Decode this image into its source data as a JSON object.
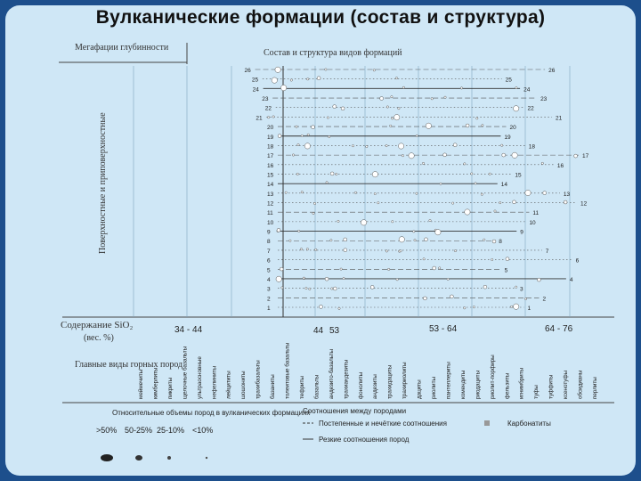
{
  "title": "Вулканические формации (состав и структура)",
  "header": {
    "depth_facies": "Мегафации глубинности",
    "composition": "Состав и структура видов формаций",
    "left_axis": "Поверхностные и приповерхностные"
  },
  "silica": {
    "label": "Содержание SiO₂",
    "unit": "(вес. %)",
    "ranges": [
      "34 - 44",
      "44",
      "53",
      "53 - 64",
      "64 - 76"
    ]
  },
  "rocks_label": "Главные виды горных пород",
  "rocks": [
    "меймечиты",
    "кимберлиты",
    "пикриты",
    "щелочные базальты",
    "ультраосновные",
    "нефелиниты",
    "лейцититы",
    "шошониты",
    "трахибазальты",
    "базаниты",
    "толеитовые базальты",
    "тефриты",
    "базальты",
    "андезито-базальты",
    "трахиандезиты",
    "фонолиты",
    "андезиты",
    "трахидациты",
    "трахириолиты",
    "дациты",
    "риолиты",
    "пантеллериты",
    "комендиты",
    "риодациты",
    "риолит-порфиры",
    "фельзиты",
    "игнимбриты",
    "туфы",
    "туффиты",
    "ксенотуфы",
    "обсидианы",
    "перлиты"
  ],
  "legend": {
    "volume_title": "Относительные объемы пород в вулканических формациях",
    "volumes": [
      ">50%",
      "50-25%",
      "25-10%",
      "<10%"
    ],
    "relations_title": "Соотношения между породами",
    "rel1": "Постепенные и нечёткие соотношения",
    "rel2": "Резкие соотношения пород",
    "other": "Карбонатиты"
  },
  "numbers_left": [
    "26",
    "25",
    "24",
    "23",
    "22",
    "21",
    "20",
    "19",
    "18",
    "17",
    "16",
    "15",
    "14",
    "13",
    "12",
    "11",
    "10",
    "9",
    "8",
    "7",
    "6",
    "5",
    "4",
    "3",
    "2",
    "1"
  ],
  "numbers_right": [
    "26",
    "25",
    "24",
    "23",
    "22",
    "21",
    "20",
    "19",
    "18",
    "17",
    "16",
    "15",
    "14",
    "13",
    "12",
    "11",
    "10",
    "9",
    "8",
    "7",
    "6",
    "5",
    "4",
    "3",
    "2",
    "1"
  ],
  "colors": {
    "background": "#1d4f8c",
    "panel": "#cfe7f6",
    "ink": "#222222"
  }
}
